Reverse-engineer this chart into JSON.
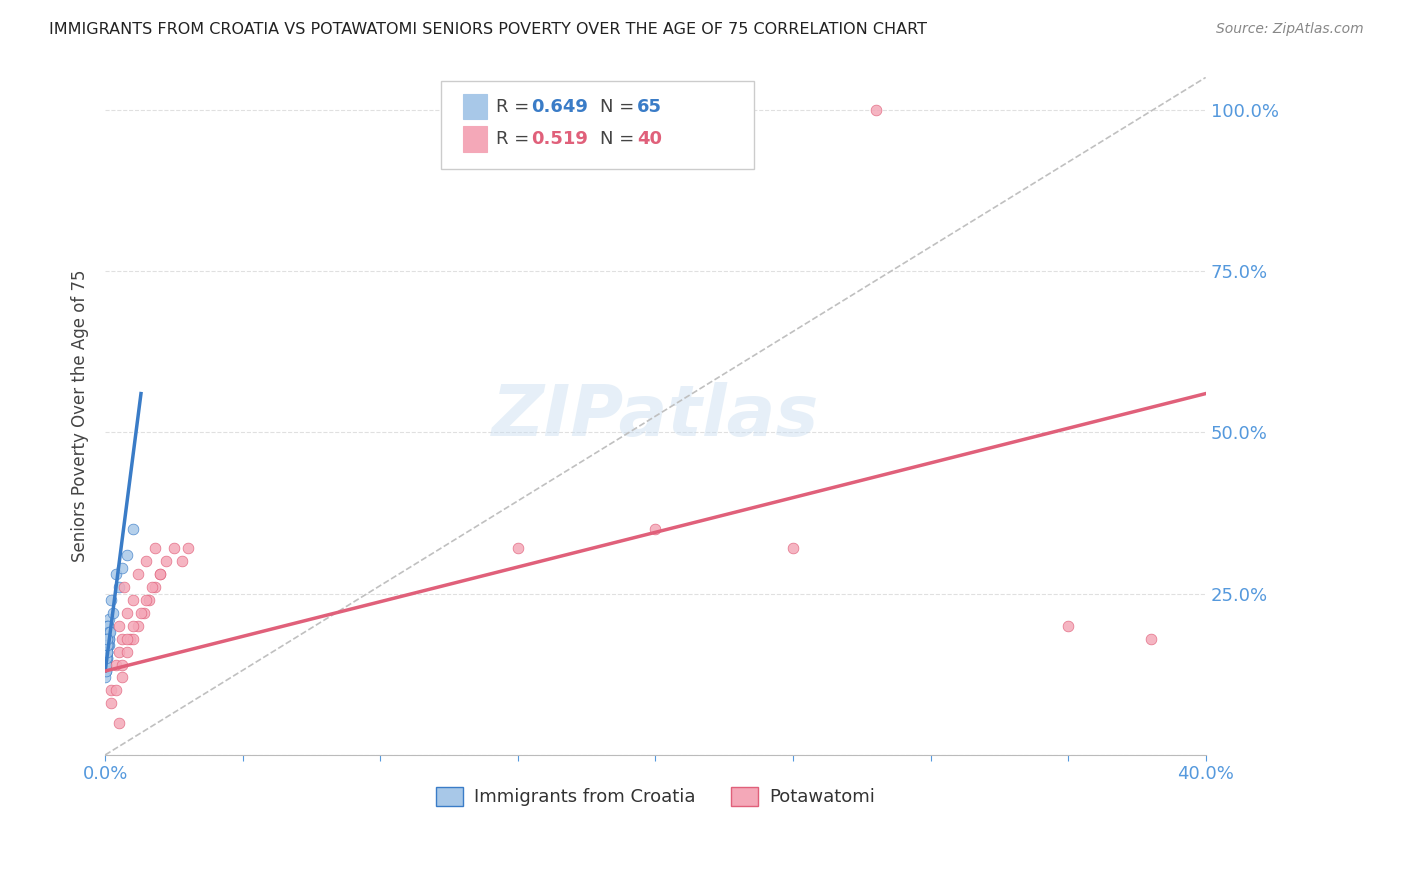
{
  "title": "IMMIGRANTS FROM CROATIA VS POTAWATOMI SENIORS POVERTY OVER THE AGE OF 75 CORRELATION CHART",
  "source": "Source: ZipAtlas.com",
  "ylabel": "Seniors Poverty Over the Age of 75",
  "xlim": [
    0.0,
    0.4
  ],
  "ylim": [
    0.0,
    1.05
  ],
  "croatia_R": 0.649,
  "croatia_N": 65,
  "potawatomi_R": 0.519,
  "potawatomi_N": 40,
  "croatia_color": "#a8c8e8",
  "potawatomi_color": "#f4a8b8",
  "croatia_line_color": "#3a7cc7",
  "potawatomi_line_color": "#e0607a",
  "diagonal_color": "#c0c0c0",
  "background_color": "#ffffff",
  "grid_color": "#e0e0e0",
  "title_color": "#222222",
  "right_axis_color": "#5599dd",
  "legend_label_croatia": "Immigrants from Croatia",
  "legend_label_potawatomi": "Potawatomi",
  "croatia_line_x": [
    0.0,
    0.013
  ],
  "croatia_line_y": [
    0.13,
    0.56
  ],
  "potawatomi_line_x": [
    0.0,
    0.4
  ],
  "potawatomi_line_y": [
    0.13,
    0.56
  ],
  "croatia_scatter_x": [
    0.0002,
    0.0003,
    0.0005,
    0.0004,
    0.0006,
    0.0008,
    0.001,
    0.0012,
    0.0015,
    0.0002,
    0.0004,
    0.0006,
    0.0003,
    0.0005,
    0.0007,
    0.0009,
    0.0011,
    0.0013,
    0.0002,
    0.0003,
    0.0004,
    0.0005,
    0.0006,
    0.0007,
    0.0002,
    0.0003,
    0.0004,
    0.0001,
    0.0002,
    0.0003,
    0.0004,
    0.0005,
    0.0006,
    0.0007,
    0.0008,
    0.0009,
    0.001,
    0.0011,
    0.0012,
    0.0013,
    0.0014,
    0.0015,
    0.0016,
    0.0002,
    0.0003,
    0.0004,
    0.0005,
    0.0006,
    0.0007,
    0.0008,
    0.0009,
    0.0001,
    0.0002,
    0.0003,
    0.0004,
    0.0005,
    0.0006,
    0.0007,
    0.01,
    0.003,
    0.005,
    0.002,
    0.004,
    0.006,
    0.008
  ],
  "croatia_scatter_y": [
    0.17,
    0.18,
    0.19,
    0.16,
    0.18,
    0.17,
    0.2,
    0.19,
    0.21,
    0.15,
    0.17,
    0.18,
    0.16,
    0.19,
    0.2,
    0.17,
    0.18,
    0.19,
    0.14,
    0.16,
    0.17,
    0.18,
    0.15,
    0.16,
    0.13,
    0.15,
    0.14,
    0.13,
    0.14,
    0.15,
    0.16,
    0.17,
    0.18,
    0.16,
    0.17,
    0.18,
    0.19,
    0.2,
    0.18,
    0.19,
    0.17,
    0.18,
    0.19,
    0.14,
    0.15,
    0.16,
    0.17,
    0.18,
    0.15,
    0.16,
    0.17,
    0.12,
    0.13,
    0.14,
    0.15,
    0.16,
    0.17,
    0.18,
    0.35,
    0.22,
    0.26,
    0.24,
    0.28,
    0.29,
    0.31
  ],
  "potawatomi_scatter_x": [
    0.002,
    0.004,
    0.006,
    0.005,
    0.008,
    0.01,
    0.007,
    0.009,
    0.005,
    0.012,
    0.015,
    0.018,
    0.006,
    0.008,
    0.01,
    0.012,
    0.014,
    0.016,
    0.02,
    0.022,
    0.025,
    0.028,
    0.03,
    0.018,
    0.02,
    0.015,
    0.017,
    0.013,
    0.01,
    0.008,
    0.006,
    0.004,
    0.002,
    0.005,
    0.15,
    0.2,
    0.25,
    0.35,
    0.38,
    0.28
  ],
  "potawatomi_scatter_y": [
    0.1,
    0.14,
    0.18,
    0.2,
    0.22,
    0.24,
    0.26,
    0.18,
    0.16,
    0.28,
    0.3,
    0.32,
    0.14,
    0.16,
    0.18,
    0.2,
    0.22,
    0.24,
    0.28,
    0.3,
    0.32,
    0.3,
    0.32,
    0.26,
    0.28,
    0.24,
    0.26,
    0.22,
    0.2,
    0.18,
    0.12,
    0.1,
    0.08,
    0.05,
    0.32,
    0.35,
    0.32,
    0.2,
    0.18,
    1.0
  ]
}
